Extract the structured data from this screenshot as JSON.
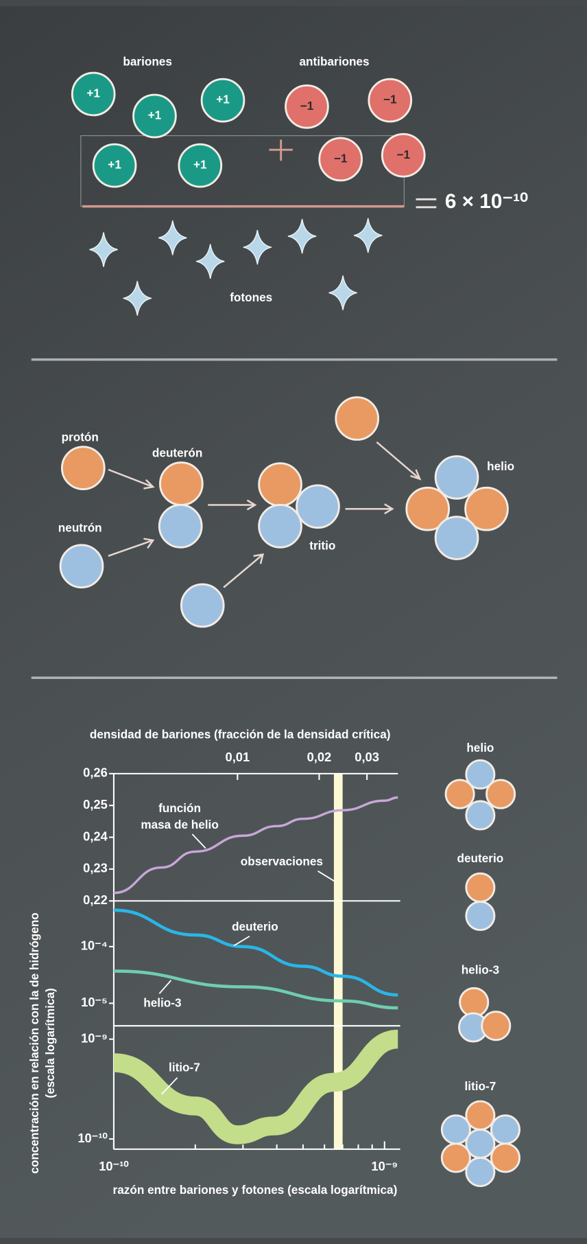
{
  "baryogenesis": {
    "baryons_label": "bariones",
    "antibaryons_label": "antibariones",
    "baryons": [
      "+1",
      "+1",
      "+1",
      "+1",
      "+1"
    ],
    "antibaryons": [
      "−1",
      "−1",
      "−1",
      "−1"
    ],
    "ratio": "6 × 10⁻¹⁰",
    "photons_label": "fotones"
  },
  "nucleosynthesis": {
    "proton": "protón",
    "neutron": "neutrón",
    "deuteron": "deuterón",
    "tritium": "tritio",
    "helium": "helio"
  },
  "chart_data": {
    "type": "line",
    "x2label": "densidad de bariones (fracción de la densidad crítica)",
    "xlabel": "razón entre bariones y fotones (escala logarítmica)",
    "ylabel": [
      "concentración en relación con la de hidrógeno",
      "(escala logarítmica)"
    ],
    "xscale": "log",
    "xlim": [
      1e-10,
      1.12e-09
    ],
    "xticks": [
      {
        "value": 1e-10,
        "label": "10⁻¹⁰"
      },
      {
        "value": 1e-09,
        "label": "10⁻⁹"
      }
    ],
    "xminorticks": [
      2e-10,
      3e-10,
      4e-10,
      5e-10,
      6e-10,
      7e-10,
      8e-10,
      9e-10
    ],
    "x2lim": [
      0.0035,
      0.039
    ],
    "x2ticks": [
      {
        "value": 0.01,
        "label": "0,01"
      },
      {
        "value": 0.02,
        "label": "0,02"
      },
      {
        "value": 0.03,
        "label": "0,03"
      }
    ],
    "observation_band": [
      6.5e-10,
      7e-10
    ],
    "observation_color": "#fdf8d4",
    "panels": [
      {
        "scale": "linear",
        "ylim": [
          0.22,
          0.26
        ],
        "yticks": [
          {
            "value": 0.22,
            "label": "0,22"
          },
          {
            "value": 0.23,
            "label": "0,23"
          },
          {
            "value": 0.24,
            "label": "0,24"
          },
          {
            "value": 0.25,
            "label": "0,25"
          },
          {
            "value": 0.26,
            "label": "0,26"
          }
        ],
        "series": [
          {
            "color": "#c9a6d8",
            "x": [
              1e-10,
              1.5e-10,
              2e-10,
              3e-10,
              4e-10,
              5e-10,
              7e-10,
              1e-09,
              1.12e-09
            ],
            "values": [
              0.2225,
              0.2305,
              0.2355,
              0.2405,
              0.2435,
              0.2458,
              0.2485,
              0.2515,
              0.2525
            ]
          }
        ]
      },
      {
        "scale": "log",
        "ylim": [
          4e-06,
          0.00064
        ],
        "yticks": [
          {
            "value": 0.0001,
            "label": "10⁻⁴"
          },
          {
            "value": 1e-05,
            "label": "10⁻⁵"
          }
        ],
        "series": [
          {
            "color": "#29b6e8",
            "x": [
              1e-10,
              2e-10,
              3e-10,
              5e-10,
              7e-10,
              1.12e-09
            ],
            "values": [
              0.00044,
              0.00016,
              0.0001,
              4.5e-05,
              3e-05,
              1.4e-05
            ]
          },
          {
            "color": "#6fcdb0",
            "x": [
              1e-10,
              3e-10,
              7e-10,
              1.12e-09
            ],
            "values": [
              3.7e-05,
              1.95e-05,
              1.1e-05,
              8.3e-06
            ]
          }
        ]
      },
      {
        "scale": "log",
        "ylim": [
          7.9e-11,
          1.36e-09
        ],
        "yticks": [
          {
            "value": 1e-09,
            "label": "10⁻⁹"
          },
          {
            "value": 1e-10,
            "label": "10⁻¹⁰"
          }
        ],
        "series": [
          {
            "color": "#c4dd8a",
            "x": [
              1e-10,
              2e-10,
              2.86e-10,
              3.9e-10,
              6.5e-10,
              1.12e-09
            ],
            "values": [
              5.8e-10,
              2.14e-10,
              1.1e-10,
              1.35e-10,
              3.7e-10,
              1e-09
            ]
          }
        ]
      }
    ],
    "annotations": {
      "helium": [
        "función",
        "masa de helio"
      ],
      "observations": "observaciones",
      "deuterium": "deuterio",
      "helium3": "helio-3",
      "lithium7": "litio-7"
    },
    "icons": {
      "helium": "helio",
      "deuterium": "deuterio",
      "helium3": "helio-3",
      "lithium7": "litio-7"
    }
  }
}
